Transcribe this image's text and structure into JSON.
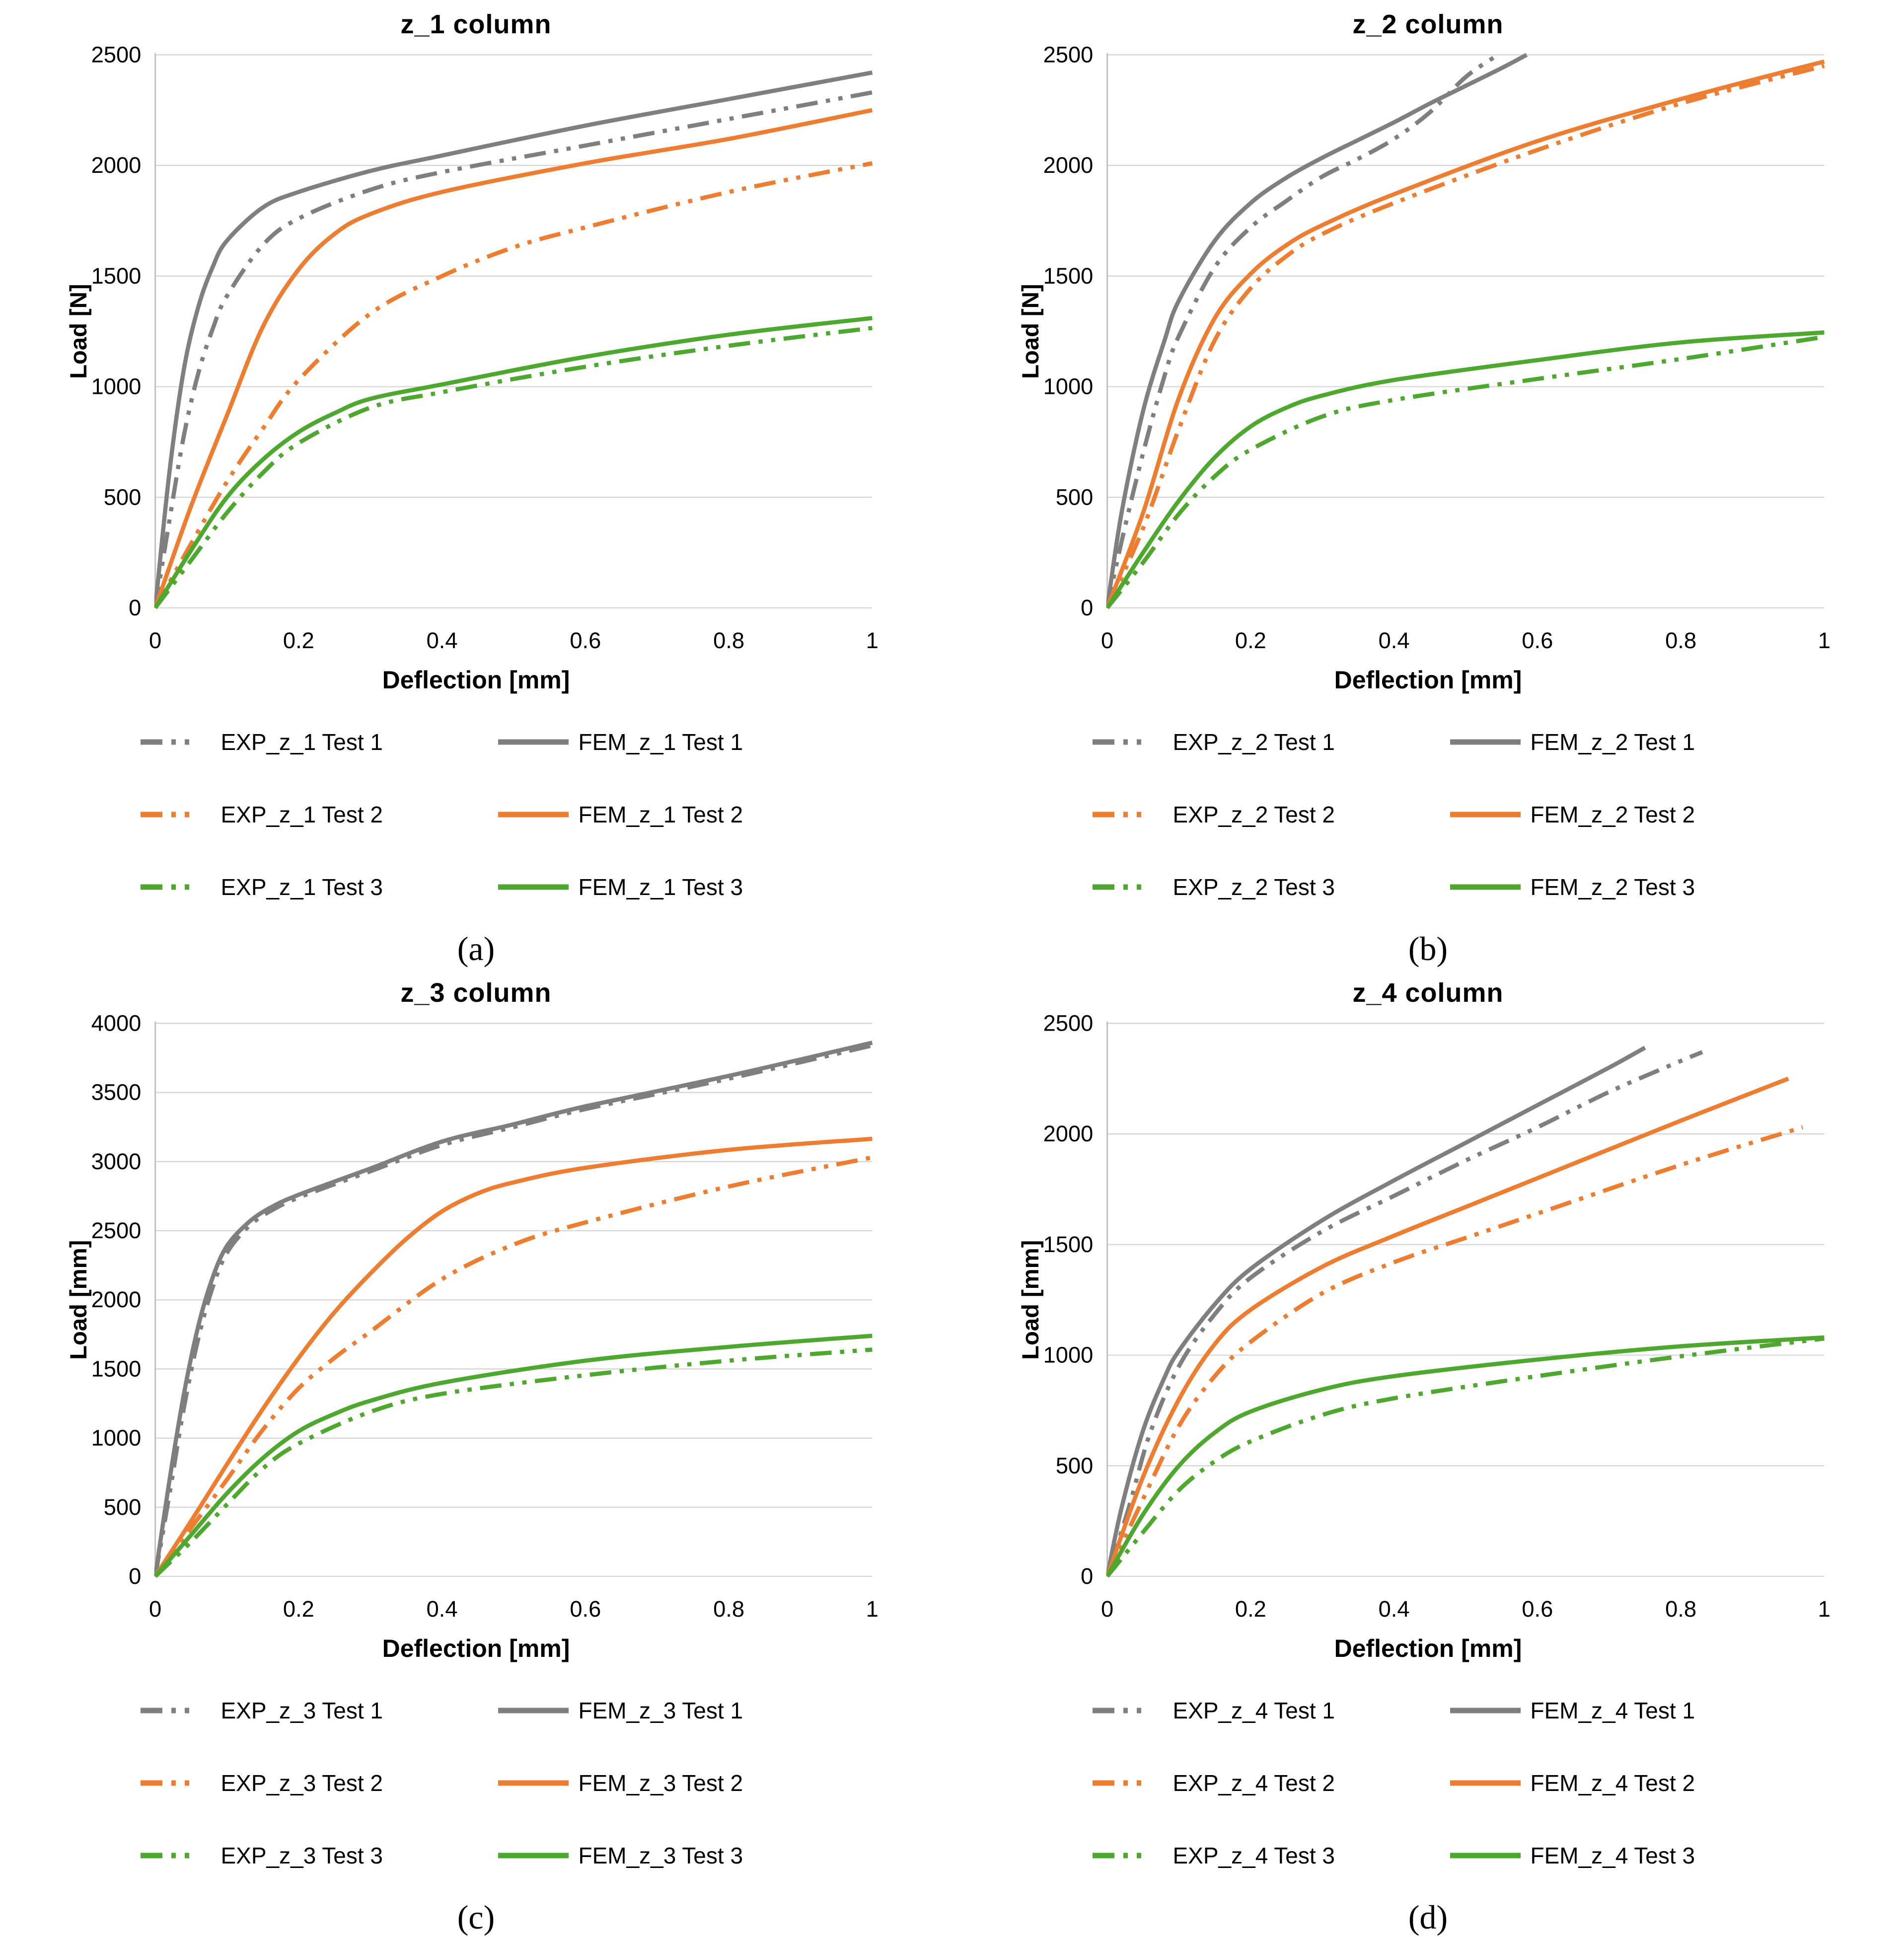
{
  "palette": {
    "gray": "#7F7F7F",
    "orange": "#ED7D31",
    "green": "#4EA72E",
    "gridline": "#D6D6D6",
    "axis_line": "#BFBFBF",
    "text": "#000000",
    "background": "#FFFFFF"
  },
  "chart_data": [
    {
      "type": "line",
      "title": "z_1 column",
      "caption": "(a)",
      "xlabel": "Deflection [mm]",
      "ylabel": "Load [N]",
      "xlim": [
        0,
        1
      ],
      "ylim": [
        0,
        2500
      ],
      "grid": "horizontal",
      "legend_position": "below",
      "xtick_values": [
        0,
        0.2,
        0.4,
        0.6,
        0.8,
        1
      ],
      "xtick_labels": [
        "0",
        "0.2",
        "0.4",
        "0.6",
        "0.8",
        "1"
      ],
      "ytick_values": [
        0,
        500,
        1000,
        1500,
        2000,
        2500
      ],
      "ytick_labels": [
        "0",
        "500",
        "1000",
        "1500",
        "2000",
        "2500"
      ],
      "series": [
        {
          "name": "EXP_z_1 Test 1",
          "color": "#7F7F7F",
          "style": "dashdotdot",
          "x": [
            0,
            0.02,
            0.04,
            0.06,
            0.08,
            0.1,
            0.15,
            0.2,
            0.3,
            0.4,
            0.6,
            0.8,
            1.0
          ],
          "y": [
            0,
            400,
            780,
            1060,
            1260,
            1410,
            1640,
            1760,
            1890,
            1970,
            2090,
            2210,
            2330
          ]
        },
        {
          "name": "FEM_z_1 Test 1",
          "color": "#7F7F7F",
          "style": "solid",
          "x": [
            0,
            0.02,
            0.04,
            0.06,
            0.08,
            0.1,
            0.15,
            0.2,
            0.3,
            0.4,
            0.6,
            0.8,
            1.0
          ],
          "y": [
            0,
            620,
            1080,
            1360,
            1540,
            1660,
            1810,
            1880,
            1975,
            2045,
            2180,
            2300,
            2420
          ]
        },
        {
          "name": "EXP_z_1 Test 2",
          "color": "#ED7D31",
          "style": "dashdotdot",
          "x": [
            0,
            0.05,
            0.1,
            0.15,
            0.2,
            0.3,
            0.4,
            0.5,
            0.6,
            0.8,
            1.0
          ],
          "y": [
            0,
            290,
            570,
            810,
            1030,
            1330,
            1500,
            1630,
            1720,
            1880,
            2010
          ]
        },
        {
          "name": "FEM_z_1 Test 2",
          "color": "#ED7D31",
          "style": "solid",
          "x": [
            0,
            0.05,
            0.1,
            0.15,
            0.2,
            0.25,
            0.3,
            0.4,
            0.6,
            0.8,
            1.0
          ],
          "y": [
            0,
            460,
            870,
            1270,
            1530,
            1690,
            1780,
            1880,
            2010,
            2120,
            2250
          ]
        },
        {
          "name": "EXP_z_1 Test 3",
          "color": "#4EA72E",
          "style": "dashdotdot",
          "x": [
            0,
            0.05,
            0.1,
            0.15,
            0.2,
            0.3,
            0.4,
            0.6,
            0.8,
            1.0
          ],
          "y": [
            0,
            215,
            430,
            610,
            745,
            905,
            975,
            1090,
            1185,
            1265
          ]
        },
        {
          "name": "FEM_z_1 Test 3",
          "color": "#4EA72E",
          "style": "solid",
          "x": [
            0,
            0.05,
            0.1,
            0.15,
            0.2,
            0.25,
            0.3,
            0.4,
            0.6,
            0.8,
            1.0
          ],
          "y": [
            0,
            260,
            500,
            670,
            795,
            880,
            945,
            1010,
            1135,
            1235,
            1310
          ]
        }
      ]
    },
    {
      "type": "line",
      "title": "z_2 column",
      "caption": "(b)",
      "xlabel": "Deflection [mm]",
      "ylabel": "Load [N]",
      "xlim": [
        0,
        1
      ],
      "ylim": [
        0,
        2500
      ],
      "grid": "horizontal",
      "legend_position": "below",
      "xtick_values": [
        0,
        0.2,
        0.4,
        0.6,
        0.8,
        1
      ],
      "xtick_labels": [
        "0",
        "0.2",
        "0.4",
        "0.6",
        "0.8",
        "1"
      ],
      "ytick_values": [
        0,
        500,
        1000,
        1500,
        2000,
        2500
      ],
      "ytick_labels": [
        "0",
        "500",
        "1000",
        "1500",
        "2000",
        "2500"
      ],
      "series": [
        {
          "name": "EXP_z_2 Test 1",
          "color": "#7F7F7F",
          "style": "dashdotdot",
          "x": [
            0,
            0.02,
            0.05,
            0.08,
            0.1,
            0.15,
            0.2,
            0.25,
            0.3,
            0.35,
            0.4,
            0.45,
            0.5,
            0.545
          ],
          "y": [
            0,
            300,
            700,
            1050,
            1230,
            1540,
            1720,
            1840,
            1950,
            2030,
            2120,
            2240,
            2400,
            2500
          ]
        },
        {
          "name": "FEM_z_2 Test 1",
          "color": "#7F7F7F",
          "style": "solid",
          "x": [
            0,
            0.02,
            0.05,
            0.08,
            0.1,
            0.15,
            0.2,
            0.25,
            0.3,
            0.35,
            0.4,
            0.45,
            0.5,
            0.55,
            0.585
          ],
          "y": [
            0,
            430,
            890,
            1210,
            1390,
            1660,
            1830,
            1945,
            2035,
            2115,
            2195,
            2280,
            2360,
            2440,
            2500
          ]
        },
        {
          "name": "EXP_z_2 Test 2",
          "color": "#ED7D31",
          "style": "dashdotdot",
          "x": [
            0,
            0.05,
            0.1,
            0.15,
            0.2,
            0.25,
            0.3,
            0.4,
            0.6,
            0.8,
            1.0
          ],
          "y": [
            0,
            360,
            810,
            1210,
            1445,
            1590,
            1690,
            1830,
            2070,
            2280,
            2450
          ]
        },
        {
          "name": "FEM_z_2 Test 2",
          "color": "#ED7D31",
          "style": "solid",
          "x": [
            0,
            0.05,
            0.1,
            0.15,
            0.2,
            0.25,
            0.3,
            0.4,
            0.6,
            0.8,
            1.0
          ],
          "y": [
            0,
            430,
            950,
            1310,
            1510,
            1640,
            1730,
            1870,
            2110,
            2300,
            2470
          ]
        },
        {
          "name": "EXP_z_2 Test 3",
          "color": "#4EA72E",
          "style": "dashdotdot",
          "x": [
            0,
            0.05,
            0.1,
            0.15,
            0.2,
            0.3,
            0.4,
            0.6,
            0.8,
            1.0
          ],
          "y": [
            0,
            205,
            425,
            595,
            715,
            865,
            940,
            1035,
            1125,
            1225
          ]
        },
        {
          "name": "FEM_z_2 Test 3",
          "color": "#4EA72E",
          "style": "solid",
          "x": [
            0,
            0.05,
            0.1,
            0.15,
            0.2,
            0.25,
            0.3,
            0.4,
            0.6,
            0.8,
            1.0
          ],
          "y": [
            0,
            250,
            485,
            680,
            820,
            905,
            960,
            1030,
            1120,
            1200,
            1245
          ]
        }
      ]
    },
    {
      "type": "line",
      "title": "z_3 column",
      "caption": "(c)",
      "xlabel": "Deflection [mm]",
      "ylabel": "Load [mm]",
      "xlim": [
        0,
        1
      ],
      "ylim": [
        0,
        4000
      ],
      "grid": "horizontal",
      "legend_position": "below",
      "xtick_values": [
        0,
        0.2,
        0.4,
        0.6,
        0.8,
        1
      ],
      "xtick_labels": [
        "0",
        "0.2",
        "0.4",
        "0.6",
        "0.8",
        "1"
      ],
      "ytick_values": [
        0,
        500,
        1000,
        1500,
        2000,
        2500,
        3000,
        3500,
        4000
      ],
      "ytick_labels": [
        "0",
        "500",
        "1000",
        "1500",
        "2000",
        "2500",
        "3000",
        "3500",
        "4000"
      ],
      "series": [
        {
          "name": "EXP_z_3 Test 1",
          "color": "#7F7F7F",
          "style": "dashdotdot",
          "x": [
            0,
            0.02,
            0.04,
            0.06,
            0.08,
            0.1,
            0.13,
            0.16,
            0.2,
            0.3,
            0.4,
            0.5,
            0.6,
            0.8,
            1.0
          ],
          "y": [
            0,
            600,
            1220,
            1720,
            2090,
            2340,
            2530,
            2640,
            2740,
            2930,
            3120,
            3250,
            3380,
            3600,
            3840
          ]
        },
        {
          "name": "FEM_z_3 Test 1",
          "color": "#7F7F7F",
          "style": "solid",
          "x": [
            0,
            0.02,
            0.04,
            0.06,
            0.08,
            0.1,
            0.13,
            0.16,
            0.2,
            0.3,
            0.4,
            0.5,
            0.6,
            0.8,
            1.0
          ],
          "y": [
            0,
            700,
            1320,
            1810,
            2160,
            2390,
            2560,
            2665,
            2760,
            2950,
            3145,
            3270,
            3400,
            3620,
            3860
          ]
        },
        {
          "name": "EXP_z_3 Test 2",
          "color": "#ED7D31",
          "style": "dashdotdot",
          "x": [
            0,
            0.05,
            0.1,
            0.15,
            0.2,
            0.25,
            0.3,
            0.4,
            0.5,
            0.6,
            0.8,
            1.0
          ],
          "y": [
            0,
            350,
            700,
            1060,
            1360,
            1580,
            1770,
            2150,
            2400,
            2560,
            2820,
            3030
          ]
        },
        {
          "name": "FEM_z_3 Test 2",
          "color": "#ED7D31",
          "style": "solid",
          "x": [
            0,
            0.05,
            0.1,
            0.15,
            0.2,
            0.25,
            0.3,
            0.35,
            0.4,
            0.45,
            0.5,
            0.6,
            0.8,
            1.0
          ],
          "y": [
            0,
            400,
            810,
            1210,
            1580,
            1910,
            2190,
            2440,
            2640,
            2770,
            2850,
            2955,
            3085,
            3165
          ]
        },
        {
          "name": "EXP_z_3 Test 3",
          "color": "#4EA72E",
          "style": "dashdotdot",
          "x": [
            0,
            0.05,
            0.1,
            0.15,
            0.2,
            0.3,
            0.4,
            0.6,
            0.8,
            1.0
          ],
          "y": [
            0,
            250,
            520,
            780,
            960,
            1190,
            1320,
            1455,
            1560,
            1640
          ]
        },
        {
          "name": "FEM_z_3 Test 3",
          "color": "#4EA72E",
          "style": "solid",
          "x": [
            0,
            0.05,
            0.1,
            0.15,
            0.2,
            0.25,
            0.3,
            0.4,
            0.6,
            0.8,
            1.0
          ],
          "y": [
            0,
            300,
            600,
            855,
            1050,
            1175,
            1270,
            1400,
            1560,
            1660,
            1740
          ]
        }
      ]
    },
    {
      "type": "line",
      "title": "z_4 column",
      "caption": "(d)",
      "xlabel": "Deflection [mm]",
      "ylabel": "Load [mm]",
      "xlim": [
        0,
        1
      ],
      "ylim": [
        0,
        2500
      ],
      "grid": "horizontal",
      "legend_position": "below",
      "xtick_values": [
        0,
        0.2,
        0.4,
        0.6,
        0.8,
        1
      ],
      "xtick_labels": [
        "0",
        "0.2",
        "0.4",
        "0.6",
        "0.8",
        "1"
      ],
      "ytick_values": [
        0,
        500,
        1000,
        1500,
        2000,
        2500
      ],
      "ytick_labels": [
        "0",
        "500",
        "1000",
        "1500",
        "2000",
        "2500"
      ],
      "series": [
        {
          "name": "EXP_z_4 Test 1",
          "color": "#7F7F7F",
          "style": "dashdotdot",
          "x": [
            0,
            0.03,
            0.06,
            0.1,
            0.15,
            0.2,
            0.3,
            0.4,
            0.5,
            0.6,
            0.7,
            0.8,
            0.83
          ],
          "y": [
            0,
            310,
            650,
            950,
            1185,
            1350,
            1560,
            1720,
            1880,
            2030,
            2190,
            2330,
            2370
          ]
        },
        {
          "name": "FEM_z_4 Test 1",
          "color": "#7F7F7F",
          "style": "solid",
          "x": [
            0,
            0.02,
            0.05,
            0.08,
            0.1,
            0.15,
            0.2,
            0.3,
            0.4,
            0.5,
            0.6,
            0.7,
            0.75
          ],
          "y": [
            0,
            310,
            660,
            900,
            1020,
            1230,
            1390,
            1610,
            1790,
            1960,
            2130,
            2300,
            2390
          ]
        },
        {
          "name": "EXP_z_4 Test 2",
          "color": "#ED7D31",
          "style": "dashdotdot",
          "x": [
            0,
            0.05,
            0.1,
            0.15,
            0.2,
            0.3,
            0.4,
            0.5,
            0.6,
            0.8,
            0.97
          ],
          "y": [
            0,
            350,
            680,
            905,
            1060,
            1280,
            1420,
            1530,
            1640,
            1860,
            2030
          ]
        },
        {
          "name": "FEM_z_4 Test 2",
          "color": "#ED7D31",
          "style": "solid",
          "x": [
            0,
            0.05,
            0.1,
            0.15,
            0.2,
            0.3,
            0.4,
            0.5,
            0.6,
            0.8,
            0.95
          ],
          "y": [
            0,
            450,
            800,
            1050,
            1205,
            1400,
            1540,
            1670,
            1800,
            2060,
            2250
          ]
        },
        {
          "name": "EXP_z_4 Test 3",
          "color": "#4EA72E",
          "style": "dashdotdot",
          "x": [
            0,
            0.05,
            0.1,
            0.15,
            0.2,
            0.3,
            0.4,
            0.6,
            0.8,
            1.0
          ],
          "y": [
            0,
            200,
            390,
            520,
            610,
            730,
            805,
            905,
            995,
            1075
          ]
        },
        {
          "name": "FEM_z_4 Test 3",
          "color": "#4EA72E",
          "style": "solid",
          "x": [
            0,
            0.05,
            0.1,
            0.15,
            0.2,
            0.3,
            0.4,
            0.6,
            0.8,
            1.0
          ],
          "y": [
            0,
            280,
            500,
            650,
            745,
            845,
            905,
            980,
            1040,
            1080
          ]
        }
      ]
    }
  ]
}
